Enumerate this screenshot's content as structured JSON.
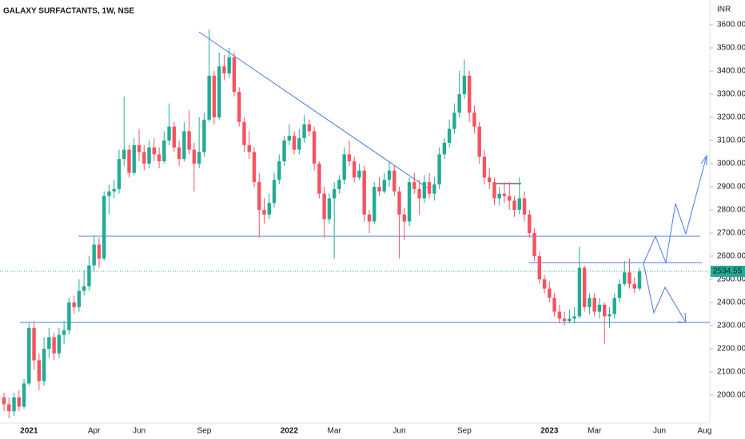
{
  "chart_data": {
    "type": "candlestick",
    "title": "GALAXY SURFACTANTS, 1W, NSE",
    "y_axis_label": "INR",
    "categories": [
      null,
      null,
      null,
      null,
      null,
      "2021",
      null,
      null,
      null,
      null,
      null,
      null,
      null,
      null,
      null,
      null,
      null,
      null,
      "Apr",
      null,
      null,
      null,
      null,
      null,
      null,
      null,
      null,
      "Jun",
      null,
      null,
      null,
      null,
      null,
      null,
      null,
      null,
      null,
      null,
      null,
      null,
      "Sep",
      null,
      null,
      null,
      null,
      null,
      null,
      null,
      null,
      null,
      null,
      null,
      null,
      null,
      null,
      null,
      null,
      "2022",
      null,
      null,
      null,
      null,
      null,
      null,
      null,
      null,
      "Mar",
      null,
      null,
      null,
      null,
      null,
      null,
      null,
      null,
      null,
      null,
      null,
      null,
      "Jun",
      null,
      null,
      null,
      null,
      null,
      null,
      null,
      null,
      null,
      null,
      null,
      null,
      "Sep",
      null,
      null,
      null,
      null,
      null,
      null,
      null,
      null,
      null,
      null,
      null,
      null,
      null,
      null,
      null,
      null,
      "2023",
      null,
      null,
      null,
      null,
      null,
      null,
      null,
      null,
      "Mar",
      null,
      null,
      null,
      null,
      null,
      null,
      null,
      null,
      null,
      null,
      null,
      null,
      "Jun",
      null,
      null,
      null,
      null,
      null,
      null,
      null,
      null,
      "Aug"
    ],
    "open": [
      1990,
      1960,
      1930,
      1990,
      1950,
      2050,
      2290,
      2150,
      2060,
      2200,
      2250,
      2180,
      2260,
      2280,
      2400,
      2380,
      2450,
      2470,
      2560,
      2650,
      2590,
      2860,
      2880,
      2890,
      3020,
      3060,
      2960,
      3080,
      3050,
      3000,
      3070,
      3040,
      3010,
      3100,
      3160,
      3070,
      3020,
      3140,
      3060,
      3000,
      3050,
      3190,
      3380,
      3200,
      3420,
      3390,
      3460,
      3310,
      3180,
      3080,
      3050,
      2920,
      2800,
      2780,
      2830,
      2930,
      3010,
      3100,
      3120,
      3060,
      3110,
      3170,
      3140,
      3000,
      2870,
      2760,
      2850,
      2890,
      2930,
      3040,
      3010,
      2940,
      2970,
      2780,
      2750,
      2900,
      2880,
      2930,
      2970,
      2880,
      2780,
      2750,
      2920,
      2890,
      2850,
      2920,
      2870,
      2910,
      3040,
      3090,
      3150,
      3220,
      3300,
      3380,
      3220,
      3160,
      3030,
      2940,
      2920,
      2850,
      2870,
      2860,
      2840,
      2800,
      2850,
      2780,
      2700,
      2600,
      2500,
      2460,
      2420,
      2360,
      2330,
      2320,
      2330,
      2340,
      2550,
      2380,
      2420,
      2360,
      2390,
      2340,
      2350,
      2420,
      2480,
      2530,
      2480,
      2460,
      null,
      null,
      null,
      null,
      null,
      null,
      null,
      null,
      null,
      null,
      null,
      null,
      null
    ],
    "high": [
      2010,
      1990,
      2010,
      2020,
      2070,
      2310,
      2320,
      2180,
      2250,
      2290,
      2270,
      2290,
      2320,
      2420,
      2430,
      2500,
      2540,
      2600,
      2690,
      2680,
      2880,
      2910,
      2930,
      3060,
      3290,
      3080,
      3110,
      3150,
      3080,
      3100,
      3110,
      3070,
      3140,
      3260,
      3180,
      3100,
      3180,
      3230,
      3090,
      3200,
      3220,
      3580,
      3400,
      3480,
      3470,
      3500,
      3480,
      3330,
      3200,
      3140,
      3070,
      2960,
      2850,
      2870,
      2960,
      3040,
      3120,
      3170,
      3140,
      3150,
      3210,
      3190,
      3160,
      3010,
      2900,
      2870,
      2920,
      2950,
      3070,
      3100,
      3030,
      3000,
      2990,
      2800,
      2920,
      2940,
      2960,
      3010,
      2990,
      2900,
      2810,
      2940,
      2960,
      2930,
      2950,
      2960,
      2940,
      3070,
      3110,
      3190,
      3260,
      3400,
      3450,
      3400,
      3250,
      3180,
      3060,
      2980,
      2940,
      2900,
      2920,
      2920,
      2860,
      2940,
      2880,
      2800,
      2720,
      2620,
      2520,
      2490,
      2440,
      2390,
      2360,
      2370,
      2380,
      2640,
      2560,
      2440,
      2440,
      2420,
      2400,
      2380,
      2440,
      2500,
      2580,
      2590,
      2510,
      2550,
      null,
      null,
      null,
      null,
      null,
      null,
      null,
      null,
      null,
      null,
      null,
      null,
      null
    ],
    "low": [
      1930,
      1900,
      1910,
      1930,
      1940,
      2040,
      2110,
      2020,
      2040,
      2160,
      2150,
      2160,
      2220,
      2260,
      2350,
      2360,
      2430,
      2450,
      2530,
      2550,
      2580,
      2780,
      2850,
      2870,
      2990,
      2940,
      2950,
      3010,
      2970,
      2980,
      3010,
      2980,
      3000,
      3080,
      3050,
      2990,
      3010,
      3040,
      2880,
      2980,
      3030,
      3180,
      3170,
      3190,
      3360,
      3370,
      3290,
      3160,
      3050,
      3020,
      2900,
      2680,
      2740,
      2760,
      2810,
      2910,
      2990,
      3080,
      3040,
      3040,
      3090,
      3120,
      2970,
      2850,
      2680,
      2740,
      2590,
      2870,
      2910,
      2990,
      2920,
      2930,
      2750,
      2700,
      2740,
      2860,
      2870,
      2900,
      2860,
      2590,
      2670,
      2730,
      2870,
      2780,
      2830,
      2850,
      2840,
      2890,
      3020,
      3070,
      3130,
      3200,
      3280,
      3180,
      3130,
      3000,
      2910,
      2890,
      2820,
      2820,
      2830,
      2800,
      2770,
      2780,
      2750,
      2680,
      2580,
      2480,
      2440,
      2400,
      2340,
      2310,
      2300,
      2310,
      2310,
      2330,
      2360,
      2350,
      2340,
      2330,
      2220,
      2290,
      2330,
      2400,
      2470,
      2460,
      2440,
      2450,
      null,
      null,
      null,
      null,
      null,
      null,
      null,
      null,
      null,
      null,
      null,
      null,
      null
    ],
    "close": [
      1960,
      1930,
      1990,
      1950,
      2050,
      2290,
      2150,
      2060,
      2200,
      2250,
      2180,
      2260,
      2280,
      2400,
      2380,
      2450,
      2470,
      2560,
      2650,
      2590,
      2860,
      2880,
      2890,
      3020,
      3060,
      2960,
      3080,
      3050,
      3000,
      3070,
      3040,
      3010,
      3100,
      3160,
      3070,
      3020,
      3140,
      3060,
      3000,
      3050,
      3190,
      3380,
      3200,
      3420,
      3390,
      3460,
      3310,
      3180,
      3080,
      3050,
      2920,
      2800,
      2780,
      2830,
      2930,
      3010,
      3100,
      3120,
      3060,
      3110,
      3170,
      3140,
      3000,
      2870,
      2760,
      2850,
      2890,
      2930,
      3040,
      3010,
      2940,
      2970,
      2780,
      2750,
      2900,
      2880,
      2930,
      2970,
      2880,
      2780,
      2750,
      2920,
      2890,
      2850,
      2920,
      2870,
      2910,
      3040,
      3090,
      3150,
      3220,
      3300,
      3380,
      3220,
      3160,
      3030,
      2940,
      2920,
      2850,
      2870,
      2860,
      2840,
      2800,
      2850,
      2780,
      2700,
      2600,
      2500,
      2460,
      2420,
      2360,
      2330,
      2320,
      2330,
      2340,
      2550,
      2380,
      2420,
      2360,
      2390,
      2340,
      2350,
      2420,
      2480,
      2530,
      2480,
      2460,
      2534.55,
      null,
      null,
      null,
      null,
      null,
      null,
      null,
      null,
      null,
      null,
      null,
      null,
      null
    ],
    "up_color": "#22ab94",
    "down_color": "#f7525f",
    "ylim": [
      1879,
      3707
    ],
    "yticks": [
      {
        "value": 2000,
        "label": "2000.00"
      },
      {
        "value": 2100,
        "label": "2100.00"
      },
      {
        "value": 2200,
        "label": "2200.00"
      },
      {
        "value": 2300,
        "label": "2300.00"
      },
      {
        "value": 2400,
        "label": "2400.00"
      },
      {
        "value": 2500,
        "label": "2500.00"
      },
      {
        "value": 2600,
        "label": "2600.00"
      },
      {
        "value": 2700,
        "label": "2700.00"
      },
      {
        "value": 2800,
        "label": "2800.00"
      },
      {
        "value": 2900,
        "label": "2900.00"
      },
      {
        "value": 3000,
        "label": "3000.00"
      },
      {
        "value": 3100,
        "label": "3100.00"
      },
      {
        "value": 3200,
        "label": "3200.00"
      },
      {
        "value": 3300,
        "label": "3300.00"
      },
      {
        "value": 3400,
        "label": "3400.00"
      },
      {
        "value": 3500,
        "label": "3500.00"
      },
      {
        "value": 3600,
        "label": "3600.00"
      }
    ],
    "last_price_label": "2534.55",
    "grid": false
  }
}
